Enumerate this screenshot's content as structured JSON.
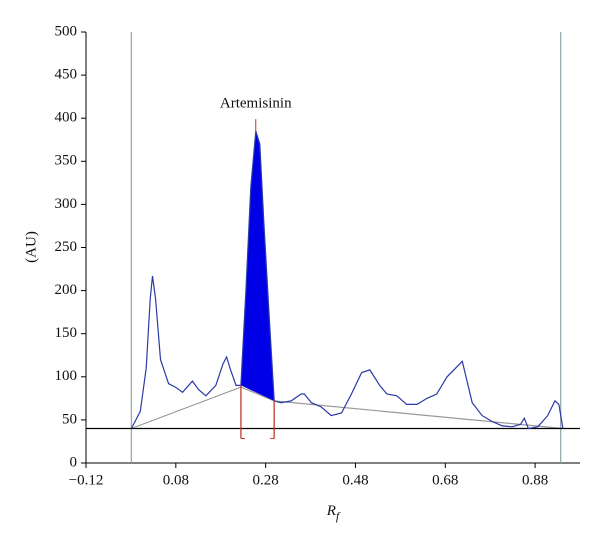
{
  "chart_data": {
    "type": "line",
    "ylabel": "(AU)",
    "xlabel": {
      "main": "R",
      "sub": "f"
    },
    "annotation": "Artemisinin",
    "xlim": [
      -0.12,
      0.98
    ],
    "ylim": [
      0,
      500
    ],
    "xticks": [
      {
        "value": -0.12,
        "label": "−0.12"
      },
      0.08,
      0.28,
      0.48,
      0.68,
      0.88
    ],
    "yticks": [
      0,
      50,
      100,
      150,
      200,
      250,
      300,
      350,
      400,
      450,
      500
    ],
    "grid": false,
    "series": [
      {
        "color": "#2b3aa6",
        "x": [
          -0.019,
          0.001,
          0.014,
          0.023,
          0.028,
          0.035,
          0.046,
          0.064,
          0.079,
          0.095,
          0.117,
          0.131,
          0.147,
          0.169,
          0.185,
          0.193,
          0.202,
          0.214,
          0.225,
          0.236,
          0.247,
          0.258,
          0.267,
          0.276,
          0.288,
          0.299,
          0.314,
          0.337,
          0.359,
          0.366,
          0.382,
          0.404,
          0.426,
          0.449,
          0.471,
          0.494,
          0.512,
          0.534,
          0.55,
          0.572,
          0.594,
          0.617,
          0.639,
          0.661,
          0.684,
          0.718,
          0.74,
          0.762,
          0.785,
          0.807,
          0.829,
          0.848,
          0.856,
          0.865,
          0.886,
          0.908,
          0.924,
          0.933,
          0.942
        ],
        "values": [
          40,
          60,
          110,
          190,
          217,
          190,
          120,
          92,
          88,
          82,
          95,
          85,
          78,
          90,
          115,
          123,
          108,
          90,
          90,
          200,
          320,
          385,
          370,
          280,
          170,
          72,
          70,
          72,
          80,
          80,
          70,
          65,
          55,
          58,
          80,
          105,
          108,
          90,
          80,
          78,
          68,
          68,
          75,
          80,
          100,
          118,
          70,
          55,
          48,
          43,
          42,
          45,
          52,
          40,
          42,
          55,
          72,
          68,
          40
        ]
      }
    ],
    "baseline": {
      "color": "#999999",
      "x": [
        -0.019,
        0.225,
        0.299,
        0.942
      ],
      "values": [
        40,
        88,
        72,
        40
      ]
    },
    "peak_range": [
      0.225,
      0.299
    ],
    "peak_color": "#0000e6",
    "marker_color": "#c0392b",
    "reference_line": 40,
    "track_limits": [
      -0.019,
      0.937
    ]
  }
}
